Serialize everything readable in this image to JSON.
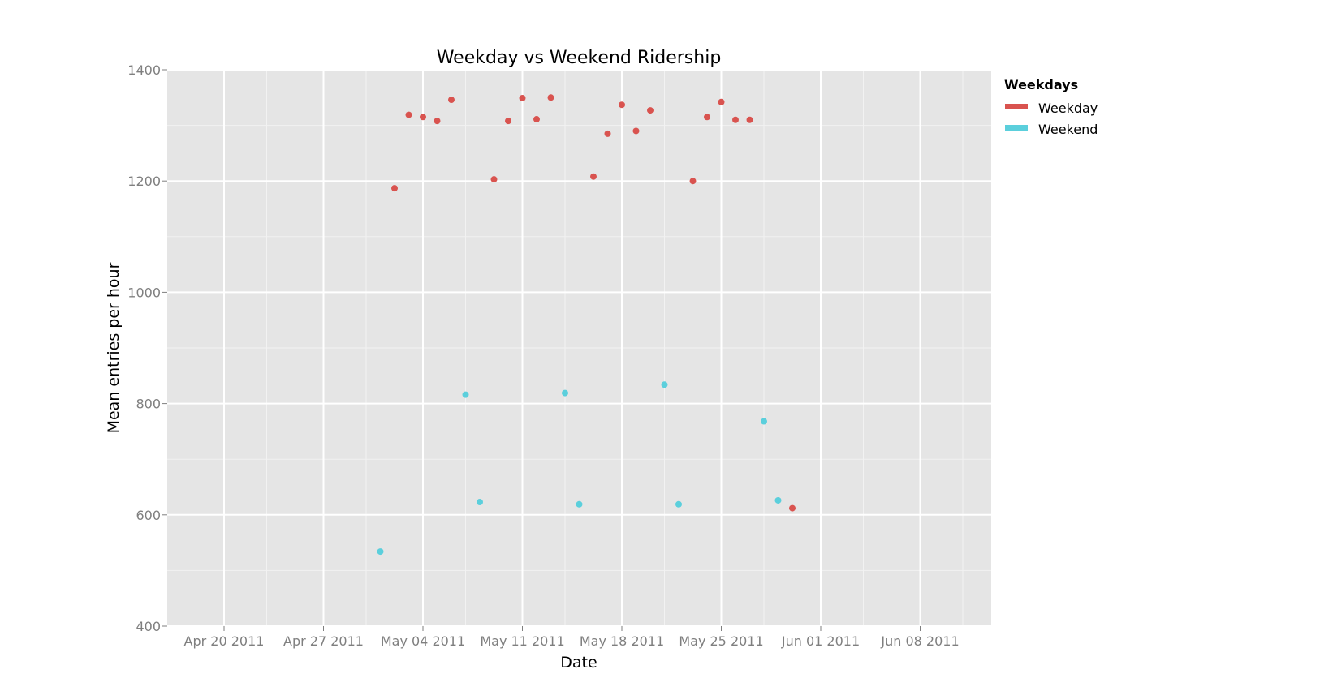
{
  "chart_data": {
    "type": "scatter",
    "title": "Weekday vs Weekend Ridership",
    "xlabel": "Date",
    "ylabel": "Mean entries per hour",
    "x_type": "date",
    "xlim": [
      "2011-04-16",
      "2011-06-13"
    ],
    "ylim": [
      400,
      1400
    ],
    "x_ticks": [
      {
        "date": "2011-04-20",
        "label": "Apr 20 2011"
      },
      {
        "date": "2011-04-27",
        "label": "Apr 27 2011"
      },
      {
        "date": "2011-05-04",
        "label": "May 04 2011"
      },
      {
        "date": "2011-05-11",
        "label": "May 11 2011"
      },
      {
        "date": "2011-05-18",
        "label": "May 18 2011"
      },
      {
        "date": "2011-05-25",
        "label": "May 25 2011"
      },
      {
        "date": "2011-06-01",
        "label": "Jun 01 2011"
      },
      {
        "date": "2011-06-08",
        "label": "Jun 08 2011"
      }
    ],
    "y_ticks": [
      {
        "value": 400,
        "label": "400"
      },
      {
        "value": 600,
        "label": "600"
      },
      {
        "value": 800,
        "label": "800"
      },
      {
        "value": 1000,
        "label": "1000"
      },
      {
        "value": 1200,
        "label": "1200"
      },
      {
        "value": 1400,
        "label": "1400"
      }
    ],
    "grid": true,
    "legend": {
      "title": "Weekdays",
      "position": "right"
    },
    "series": [
      {
        "name": "Weekday",
        "color": "#d9534f",
        "points": [
          {
            "x": "2011-05-02",
            "y": 1187
          },
          {
            "x": "2011-05-03",
            "y": 1319
          },
          {
            "x": "2011-05-04",
            "y": 1315
          },
          {
            "x": "2011-05-05",
            "y": 1308
          },
          {
            "x": "2011-05-06",
            "y": 1346
          },
          {
            "x": "2011-05-09",
            "y": 1203
          },
          {
            "x": "2011-05-10",
            "y": 1308
          },
          {
            "x": "2011-05-11",
            "y": 1349
          },
          {
            "x": "2011-05-12",
            "y": 1311
          },
          {
            "x": "2011-05-13",
            "y": 1350
          },
          {
            "x": "2011-05-16",
            "y": 1208
          },
          {
            "x": "2011-05-17",
            "y": 1285
          },
          {
            "x": "2011-05-18",
            "y": 1337
          },
          {
            "x": "2011-05-19",
            "y": 1290
          },
          {
            "x": "2011-05-20",
            "y": 1327
          },
          {
            "x": "2011-05-23",
            "y": 1200
          },
          {
            "x": "2011-05-24",
            "y": 1315
          },
          {
            "x": "2011-05-25",
            "y": 1342
          },
          {
            "x": "2011-05-26",
            "y": 1310
          },
          {
            "x": "2011-05-27",
            "y": 1310
          },
          {
            "x": "2011-05-30",
            "y": 612
          }
        ]
      },
      {
        "name": "Weekend",
        "color": "#5bcfdc",
        "points": [
          {
            "x": "2011-05-01",
            "y": 534
          },
          {
            "x": "2011-05-07",
            "y": 816
          },
          {
            "x": "2011-05-08",
            "y": 623
          },
          {
            "x": "2011-05-14",
            "y": 819
          },
          {
            "x": "2011-05-15",
            "y": 619
          },
          {
            "x": "2011-05-21",
            "y": 834
          },
          {
            "x": "2011-05-22",
            "y": 619
          },
          {
            "x": "2011-05-28",
            "y": 768
          },
          {
            "x": "2011-05-29",
            "y": 626
          }
        ]
      }
    ]
  }
}
